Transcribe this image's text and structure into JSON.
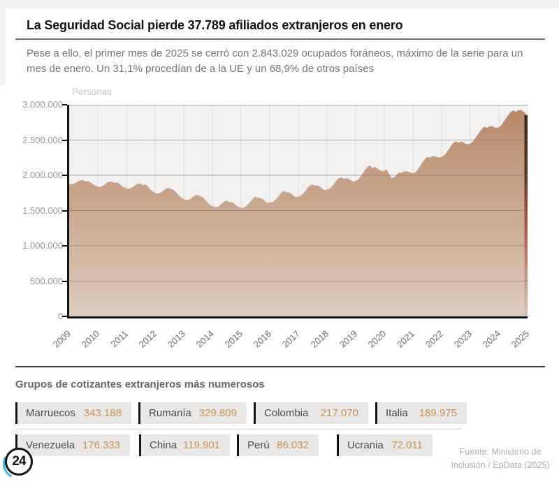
{
  "header": {
    "title": "La Seguridad Social pierde 37.789 afiliados extranjeros en enero",
    "subtitle": "Pese a ello, el primer mes de 2025 se cerró con 2.843.029 ocupados foráneos, máximo de la serie para un mes de enero.  Un 31,1% procedían de a la UE y un 68,9% de otros países"
  },
  "chart_data": {
    "type": "area",
    "ylabel": "Personas",
    "frequency": "monthly",
    "x_start": "2009-01",
    "x_end": "2025-01",
    "x_tick_labels": [
      "2009",
      "2010",
      "2011",
      "2012",
      "2013",
      "2014",
      "2015",
      "2016",
      "2017",
      "2018",
      "2019",
      "2020",
      "2021",
      "2022",
      "2023",
      "2024",
      "2025"
    ],
    "y_ticks": [
      0,
      500000,
      1000000,
      1500000,
      2000000,
      2500000,
      3000000
    ],
    "y_tick_labels": [
      "0",
      "500.000",
      "1.000.000",
      "1.500.000",
      "2.000.000",
      "2.500.000",
      "3.000.000"
    ],
    "ylim": [
      0,
      3000000
    ],
    "grid": true,
    "legend": "none",
    "last_value": 2843029,
    "values_millions": [
      1.88,
      1.87,
      1.88,
      1.9,
      1.92,
      1.93,
      1.93,
      1.91,
      1.92,
      1.9,
      1.87,
      1.85,
      1.84,
      1.83,
      1.85,
      1.87,
      1.9,
      1.91,
      1.91,
      1.89,
      1.9,
      1.88,
      1.85,
      1.83,
      1.81,
      1.81,
      1.82,
      1.84,
      1.87,
      1.88,
      1.88,
      1.86,
      1.87,
      1.84,
      1.8,
      1.77,
      1.75,
      1.74,
      1.75,
      1.77,
      1.8,
      1.82,
      1.82,
      1.8,
      1.79,
      1.75,
      1.71,
      1.68,
      1.66,
      1.65,
      1.65,
      1.67,
      1.7,
      1.72,
      1.72,
      1.7,
      1.69,
      1.65,
      1.61,
      1.58,
      1.56,
      1.55,
      1.55,
      1.57,
      1.6,
      1.63,
      1.64,
      1.62,
      1.62,
      1.6,
      1.57,
      1.55,
      1.54,
      1.54,
      1.56,
      1.59,
      1.63,
      1.67,
      1.7,
      1.68,
      1.68,
      1.66,
      1.63,
      1.61,
      1.61,
      1.62,
      1.64,
      1.67,
      1.72,
      1.76,
      1.78,
      1.76,
      1.76,
      1.74,
      1.71,
      1.69,
      1.7,
      1.71,
      1.74,
      1.78,
      1.83,
      1.86,
      1.87,
      1.85,
      1.86,
      1.84,
      1.81,
      1.79,
      1.8,
      1.81,
      1.84,
      1.88,
      1.93,
      1.96,
      1.97,
      1.95,
      1.96,
      1.95,
      1.93,
      1.91,
      1.92,
      1.94,
      1.98,
      2.03,
      2.08,
      2.12,
      2.14,
      2.1,
      2.12,
      2.1,
      2.07,
      2.06,
      2.06,
      2.08,
      2.02,
      1.96,
      1.97,
      2.0,
      2.04,
      2.03,
      2.05,
      2.06,
      2.05,
      2.04,
      2.03,
      2.04,
      2.08,
      2.13,
      2.18,
      2.23,
      2.26,
      2.25,
      2.27,
      2.27,
      2.26,
      2.25,
      2.26,
      2.28,
      2.32,
      2.37,
      2.42,
      2.46,
      2.48,
      2.46,
      2.48,
      2.47,
      2.45,
      2.44,
      2.45,
      2.47,
      2.52,
      2.57,
      2.62,
      2.66,
      2.69,
      2.67,
      2.69,
      2.7,
      2.68,
      2.67,
      2.68,
      2.71,
      2.76,
      2.81,
      2.86,
      2.9,
      2.92,
      2.9,
      2.92,
      2.93,
      2.91,
      2.88,
      2.843
    ]
  },
  "groups": {
    "heading": "Grupos de cotizantes extranjeros más numerosos",
    "rows": [
      [
        {
          "country": "Marruecos",
          "value": "343.188"
        },
        {
          "country": "Rumanía",
          "value": "329.809"
        },
        {
          "country": "Colombia",
          "value": "217.070"
        },
        {
          "country": "Italia",
          "value": "189.975"
        }
      ],
      [
        {
          "country": "Venezuela",
          "value": "176.333"
        },
        {
          "country": "China",
          "value": "119.901"
        },
        {
          "country": "Perú",
          "value": "86.032"
        },
        {
          "country": "Ucrania",
          "value": "72.011"
        }
      ]
    ]
  },
  "source": {
    "line1": "Fuente: Ministerio de",
    "line2": "Inclusión / EpData (2025)"
  },
  "logo": {
    "label": "24"
  },
  "colors": {
    "area_top": "#b8896a",
    "area_bottom": "#ddccbd",
    "edge_dark": "#3c2a1e",
    "edge_red": "#a84434",
    "grid_h": "#6f6a64",
    "grid_v": "#dcdbd9",
    "number_accent": "#cb9153",
    "plot_bg": "#f2f1ef"
  }
}
